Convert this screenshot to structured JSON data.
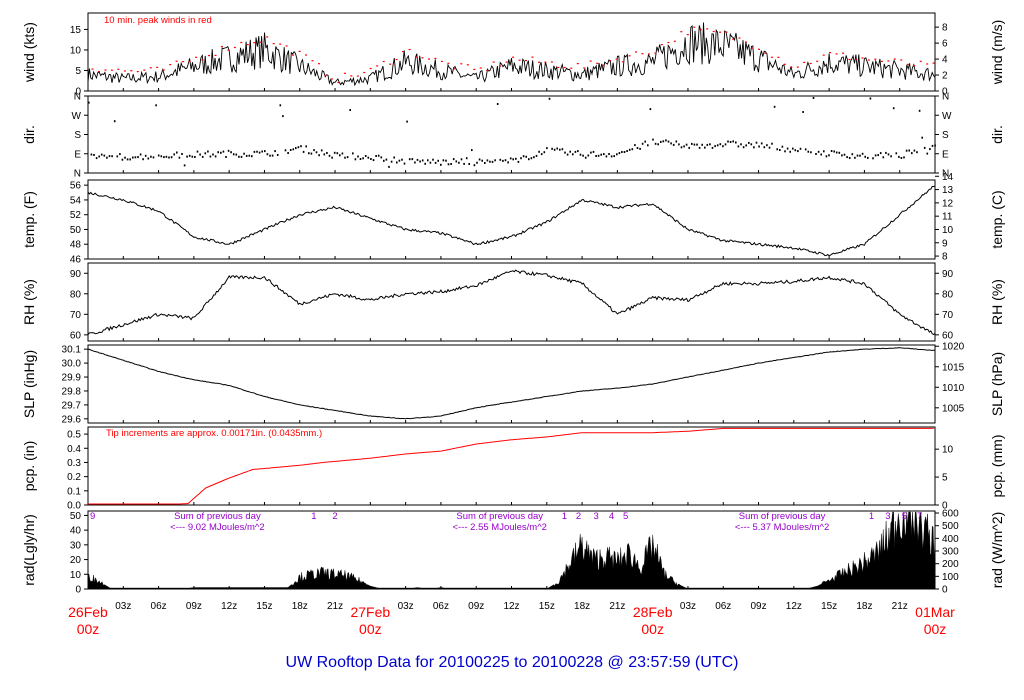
{
  "title": "UW Rooftop Data for 20100225  to  20100228 @ 23:57:59  (UTC)",
  "colors": {
    "title": "#0000cc",
    "red": "#ff0000",
    "purple": "#9900cc",
    "ink": "#000000"
  },
  "time_axis": {
    "hour_ticks": [
      "03z",
      "06z",
      "09z",
      "12z",
      "15z",
      "18z",
      "21z"
    ],
    "day_labels": [
      {
        "day": "26Feb",
        "hour": "00z"
      },
      {
        "day": "27Feb",
        "hour": "00z"
      },
      {
        "day": "28Feb",
        "hour": "00z"
      },
      {
        "day": "01Mar",
        "hour": "00z"
      }
    ]
  },
  "chart_data": [
    {
      "id": "wind",
      "type": "line",
      "ylabel_left": "wind (kts)",
      "ylabel_right": "wind (m/s)",
      "left_ticks": [
        "0",
        "5",
        "10",
        "15"
      ],
      "right_ticks": [
        "0",
        "2",
        "4",
        "6",
        "8"
      ],
      "ylim": [
        0,
        19
      ],
      "right_ylim": [
        0,
        9.77
      ],
      "annotation": "10 min. peak winds in red",
      "x_hours": [
        0,
        3,
        6,
        9,
        12,
        15,
        18,
        21,
        24,
        27,
        30,
        33,
        36,
        39,
        42,
        45,
        48,
        51,
        54,
        57,
        60,
        63,
        66,
        69,
        72
      ],
      "series": [
        {
          "values": [
            4,
            3,
            3.5,
            6,
            8,
            10,
            6,
            2,
            3,
            7,
            5,
            3,
            6,
            5,
            4,
            6,
            7,
            12,
            11,
            8,
            4,
            7,
            6,
            5,
            4
          ]
        },
        {
          "values": [
            6,
            5,
            5,
            8,
            11,
            13,
            9,
            3,
            5,
            10,
            7,
            5,
            8,
            7,
            6,
            8,
            10,
            15,
            14,
            11,
            6,
            9,
            8,
            7,
            6
          ]
        }
      ]
    },
    {
      "id": "dir",
      "type": "scatter",
      "ylabel_left": "dir.",
      "ylabel_right": "dir.",
      "left_ticks": [
        "N",
        "E",
        "S",
        "W",
        "N"
      ],
      "right_ticks": [
        "N",
        "E",
        "S",
        "W",
        "N"
      ],
      "ylim": [
        0,
        360
      ],
      "x_hours": [
        0,
        3,
        6,
        9,
        12,
        15,
        18,
        21,
        24,
        27,
        30,
        33,
        36,
        39,
        42,
        45,
        48,
        51,
        54,
        57,
        60,
        63,
        66,
        69,
        72
      ],
      "values": [
        85,
        80,
        85,
        90,
        95,
        95,
        120,
        85,
        80,
        60,
        55,
        55,
        60,
        110,
        90,
        95,
        150,
        130,
        140,
        135,
        115,
        95,
        85,
        85,
        140
      ]
    },
    {
      "id": "temp",
      "type": "line",
      "ylabel_left": "temp. (F)",
      "ylabel_right": "temp. (C)",
      "left_ticks": [
        "46",
        "48",
        "50",
        "52",
        "54",
        "56"
      ],
      "right_ticks": [
        "8",
        "9",
        "10",
        "11",
        "12",
        "13",
        "14"
      ],
      "ylim": [
        46,
        56.7
      ],
      "right_ylim": [
        7.78,
        13.72
      ],
      "x_hours": [
        0,
        3,
        6,
        9,
        12,
        15,
        18,
        21,
        24,
        27,
        30,
        33,
        36,
        39,
        42,
        45,
        48,
        51,
        54,
        57,
        60,
        63,
        66,
        69,
        72
      ],
      "values": [
        55,
        54,
        52.5,
        49,
        48,
        50,
        52,
        53,
        51.5,
        50,
        49.5,
        48,
        49,
        51,
        54,
        53,
        53.5,
        50,
        48.5,
        48,
        47.5,
        46.5,
        48,
        52,
        56
      ]
    },
    {
      "id": "rh",
      "type": "line",
      "ylabel_left": "RH (%)",
      "ylabel_right": "RH (%)",
      "left_ticks": [
        "60",
        "70",
        "80",
        "90"
      ],
      "right_ticks": [
        "60",
        "70",
        "80",
        "90"
      ],
      "ylim": [
        57,
        95
      ],
      "x_hours": [
        0,
        3,
        6,
        9,
        12,
        15,
        18,
        21,
        24,
        27,
        30,
        33,
        36,
        39,
        42,
        45,
        48,
        51,
        54,
        57,
        60,
        63,
        66,
        69,
        72
      ],
      "values": [
        60,
        65,
        70,
        68,
        88,
        88,
        75,
        80,
        77,
        80,
        81,
        84,
        91,
        89,
        85,
        70,
        78,
        77,
        85,
        85,
        86,
        88,
        85,
        70,
        60
      ]
    },
    {
      "id": "slp",
      "type": "line",
      "ylabel_left": "SLP (inHg)",
      "ylabel_right": "SLP (hPa)",
      "left_ticks": [
        "29.6",
        "29.7",
        "29.8",
        "29.9",
        "30.0",
        "30.1"
      ],
      "right_ticks": [
        "1005",
        "1010",
        "1015",
        "1020"
      ],
      "ylim": [
        29.57,
        30.13
      ],
      "right_ylim": [
        1001.3,
        1020.3
      ],
      "x_hours": [
        0,
        3,
        6,
        9,
        12,
        15,
        18,
        21,
        24,
        27,
        30,
        33,
        36,
        39,
        42,
        45,
        48,
        51,
        54,
        57,
        60,
        63,
        66,
        69,
        72
      ],
      "values": [
        30.1,
        30.02,
        29.94,
        29.88,
        29.84,
        29.76,
        29.7,
        29.66,
        29.62,
        29.6,
        29.62,
        29.68,
        29.72,
        29.76,
        29.8,
        29.82,
        29.85,
        29.9,
        29.95,
        30.0,
        30.04,
        30.08,
        30.1,
        30.11,
        30.09
      ]
    },
    {
      "id": "pcp",
      "type": "line",
      "ylabel_left": "pcp. (in)",
      "ylabel_right": "pcp. (mm)",
      "left_ticks": [
        "0.0",
        "0.1",
        "0.2",
        "0.3",
        "0.4",
        "0.5"
      ],
      "right_ticks": [
        "0",
        "5",
        "10"
      ],
      "ylim": [
        0,
        0.55
      ],
      "right_ylim": [
        0,
        13.97
      ],
      "annotation": "Tip increments are approx. 0.00171in. (0.0435mm.)",
      "x_hours": [
        0,
        3,
        6,
        8.5,
        10,
        12,
        14,
        18,
        20,
        24,
        27,
        30,
        33,
        36,
        39,
        42,
        48,
        51,
        54,
        60,
        63,
        66,
        69,
        72
      ],
      "values": [
        0,
        0,
        0,
        0.01,
        0.12,
        0.19,
        0.25,
        0.28,
        0.3,
        0.33,
        0.36,
        0.38,
        0.43,
        0.46,
        0.48,
        0.51,
        0.51,
        0.52,
        0.54,
        0.54,
        0.54,
        0.54,
        0.54,
        0.54
      ]
    },
    {
      "id": "rad",
      "type": "area",
      "ylabel_left": "rad(Lgly/hr)",
      "ylabel_right": "rad (W/m^2)",
      "left_ticks": [
        "0",
        "10",
        "20",
        "30",
        "40",
        "50"
      ],
      "right_ticks": [
        "0",
        "100",
        "200",
        "300",
        "400",
        "500",
        "600"
      ],
      "ylim": [
        0,
        53
      ],
      "right_ylim": [
        0,
        616
      ],
      "x_hours": [
        0,
        1,
        2,
        8,
        9,
        12,
        15,
        17,
        18,
        19,
        20,
        21,
        22,
        23,
        24,
        25,
        26,
        27,
        28,
        29,
        30,
        31,
        32,
        33,
        34,
        35,
        36,
        37,
        38,
        39,
        40,
        41,
        42,
        43,
        44,
        45,
        46,
        47,
        48,
        49,
        50,
        51,
        52,
        53,
        54,
        55,
        56,
        57,
        58,
        59,
        60,
        61,
        62,
        63,
        64,
        65,
        66,
        67,
        68,
        69,
        70,
        71,
        72
      ],
      "values": [
        9,
        5,
        0,
        0,
        1,
        1,
        1,
        1,
        8,
        10,
        11,
        10,
        9,
        6,
        2,
        0,
        0,
        0,
        1,
        0,
        1,
        0,
        0,
        0,
        0,
        0,
        0,
        0,
        0,
        0,
        5,
        18,
        30,
        20,
        22,
        19,
        24,
        15,
        30,
        10,
        4,
        0,
        0,
        0,
        0,
        0,
        0,
        0,
        0,
        0,
        0,
        0,
        2,
        6,
        10,
        14,
        18,
        24,
        35,
        52,
        55,
        42,
        30
      ],
      "day_sums": [
        {
          "text": "Sum of previous day",
          "value": "<--- 9.02 MJoules/m^2"
        },
        {
          "text": "Sum of previous day",
          "value": "<--- 2.55 MJoules/m^2"
        },
        {
          "text": "Sum of previous day",
          "value": "<--- 5.37 MJoules/m^2"
        }
      ],
      "event_marks": [
        {
          "hour": 0.4,
          "label": "9"
        },
        {
          "hour": 19.2,
          "label": "1"
        },
        {
          "hour": 21.0,
          "label": "2"
        },
        {
          "hour": 40.5,
          "label": "1"
        },
        {
          "hour": 41.7,
          "label": "2"
        },
        {
          "hour": 43.2,
          "label": "3"
        },
        {
          "hour": 44.5,
          "label": "4"
        },
        {
          "hour": 45.7,
          "label": "5"
        },
        {
          "hour": 66.6,
          "label": "1"
        },
        {
          "hour": 68.0,
          "label": "3"
        },
        {
          "hour": 69.4,
          "label": "5"
        },
        {
          "hour": 70.7,
          "label": "7"
        }
      ]
    }
  ]
}
